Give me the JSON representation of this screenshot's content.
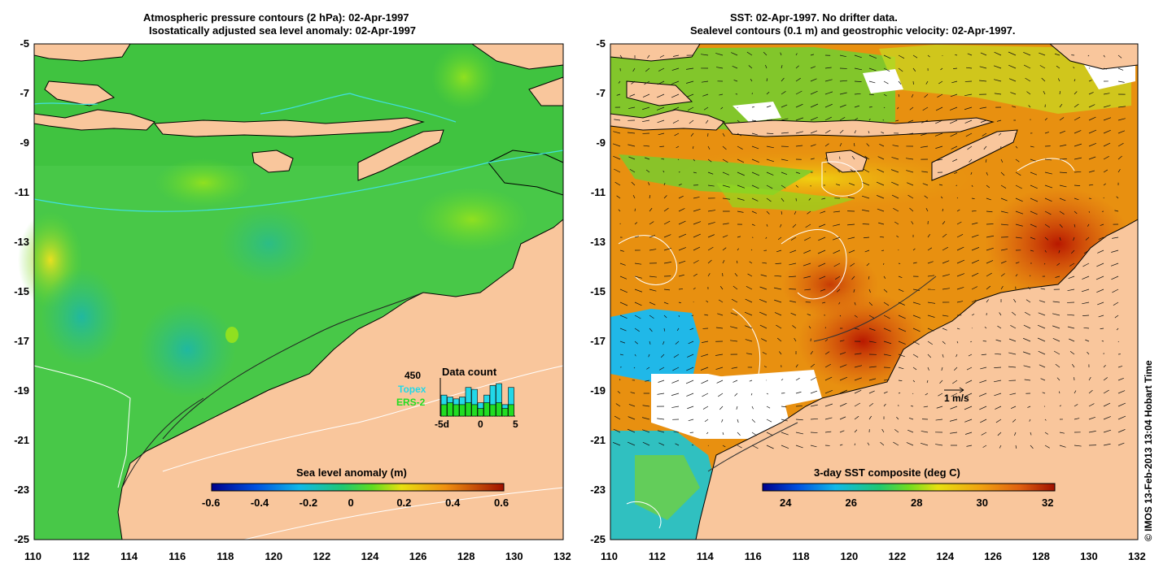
{
  "left_panel": {
    "title_line1": "Atmospheric pressure contours (2 hPa): 02-Apr-1997",
    "title_line2": "Isostatically adjusted sea level anomaly: 02-Apr-1997",
    "x_ticks": [
      "110",
      "112",
      "114",
      "116",
      "118",
      "120",
      "122",
      "124",
      "126",
      "128",
      "130",
      "132"
    ],
    "y_ticks": [
      "-5",
      "-7",
      "-9",
      "-11",
      "-13",
      "-15",
      "-17",
      "-19",
      "-21",
      "-23",
      "-25"
    ],
    "colorbar": {
      "label": "Sea level anomaly (m)",
      "ticks": [
        "-0.6",
        "-0.4",
        "-0.2",
        "0",
        "0.2",
        "0.4",
        "0.6"
      ]
    },
    "data_count": {
      "title": "Data count",
      "max_label": "450",
      "topex_label": "Topex",
      "ers2_label": "ERS-2",
      "x_ticks": [
        "-5d",
        "0",
        "5"
      ],
      "topex_color": "#22d8e8",
      "ers2_color": "#22dd22",
      "bars_total": [
        0.55,
        0.5,
        0.45,
        0.5,
        0.75,
        0.7,
        0.35,
        0.55,
        0.8,
        0.85,
        0.3,
        0.75
      ],
      "bars_ers2": [
        0.3,
        0.35,
        0.3,
        0.3,
        0.35,
        0.3,
        0.2,
        0.35,
        0.3,
        0.35,
        0.2,
        0.3
      ]
    }
  },
  "right_panel": {
    "title_line1": "SST: 02-Apr-1997. No drifter data.",
    "title_line2": "Sealevel contours (0.1 m) and geostrophic velocity: 02-Apr-1997.",
    "x_ticks": [
      "110",
      "112",
      "114",
      "116",
      "118",
      "120",
      "122",
      "124",
      "126",
      "128",
      "130",
      "132"
    ],
    "y_ticks": [
      "-5",
      "-7",
      "-9",
      "-11",
      "-13",
      "-15",
      "-17",
      "-19",
      "-21",
      "-23",
      "-25"
    ],
    "colorbar": {
      "label": "3-day SST composite (deg C)",
      "ticks": [
        "24",
        "26",
        "28",
        "30",
        "32"
      ]
    },
    "velocity_scale_label": "1 m/s"
  },
  "credit": "© IMOS 13-Feb-2013 13:04 Hobart Time",
  "colors": {
    "land": "#f9c69c",
    "sea_green": "#3ecc3e",
    "sst_orange": "#e89010",
    "sst_red": "#b81800"
  }
}
